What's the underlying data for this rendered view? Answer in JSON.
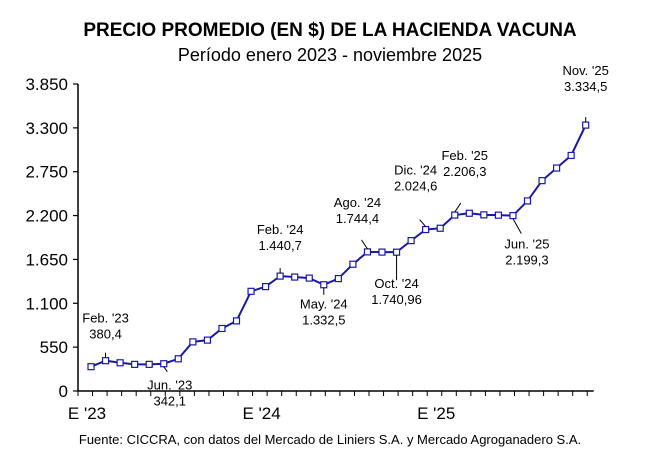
{
  "chart_data": {
    "type": "line",
    "title": "PRECIO PROMEDIO (EN $) DE LA HACIENDA VACUNA",
    "subtitle": "Período enero 2023 - noviembre 2025",
    "source": "Fuente: CICCRA, con datos del Mercado de Liniers S.A. y Mercado Agroganadero S.A.",
    "xlabel": "",
    "ylabel": "",
    "ylim": [
      0,
      3850
    ],
    "yticks": [
      0,
      550,
      1100,
      1650,
      2200,
      2750,
      3300,
      3850
    ],
    "ytick_labels": [
      "0",
      "550",
      "1.100",
      "1.650",
      "2.200",
      "2.750",
      "3.300",
      "3.850"
    ],
    "xtick_labels": [
      {
        "month_index": 0,
        "label": "E '23"
      },
      {
        "month_index": 12,
        "label": "E '24"
      },
      {
        "month_index": 24,
        "label": "E '25"
      }
    ],
    "x": [
      "2023-01",
      "2023-02",
      "2023-03",
      "2023-04",
      "2023-05",
      "2023-06",
      "2023-07",
      "2023-08",
      "2023-09",
      "2023-10",
      "2023-11",
      "2023-12",
      "2024-01",
      "2024-02",
      "2024-03",
      "2024-04",
      "2024-05",
      "2024-06",
      "2024-07",
      "2024-08",
      "2024-09",
      "2024-10",
      "2024-11",
      "2024-12",
      "2025-01",
      "2025-02",
      "2025-03",
      "2025-04",
      "2025-05",
      "2025-06",
      "2025-07",
      "2025-08",
      "2025-09",
      "2025-10",
      "2025-11"
    ],
    "values": [
      305,
      380.4,
      354,
      334,
      334,
      342.1,
      404,
      616,
      638,
      784,
      879,
      1250,
      1309,
      1440.7,
      1429,
      1416,
      1332.5,
      1410,
      1590,
      1744.4,
      1742,
      1740.96,
      1886,
      2024.6,
      2041,
      2206.3,
      2229,
      2209,
      2205,
      2199.3,
      2384,
      2638,
      2796,
      2954,
      3334.5
    ],
    "grid": false,
    "line_color": "#1a1aa0",
    "marker": "hollow-square",
    "annotations": [
      {
        "index": 1,
        "label": "Feb. '23",
        "value_label": "380,4"
      },
      {
        "index": 5,
        "label": "Jun. '23",
        "value_label": "342,1"
      },
      {
        "index": 13,
        "label": "Feb. '24",
        "value_label": "1.440,7"
      },
      {
        "index": 16,
        "label": "May. '24",
        "value_label": "1.332,5"
      },
      {
        "index": 19,
        "label": "Ago. '24",
        "value_label": "1.744,4"
      },
      {
        "index": 21,
        "label": "Oct. '24",
        "value_label": "1.740,96"
      },
      {
        "index": 23,
        "label": "Dic. '24",
        "value_label": "2.024,6"
      },
      {
        "index": 25,
        "label": "Feb. '25",
        "value_label": "2.206,3"
      },
      {
        "index": 29,
        "label": "Jun. '25",
        "value_label": "2.199,3"
      },
      {
        "index": 34,
        "label": "Nov. '25",
        "value_label": "3.334,5"
      }
    ]
  }
}
